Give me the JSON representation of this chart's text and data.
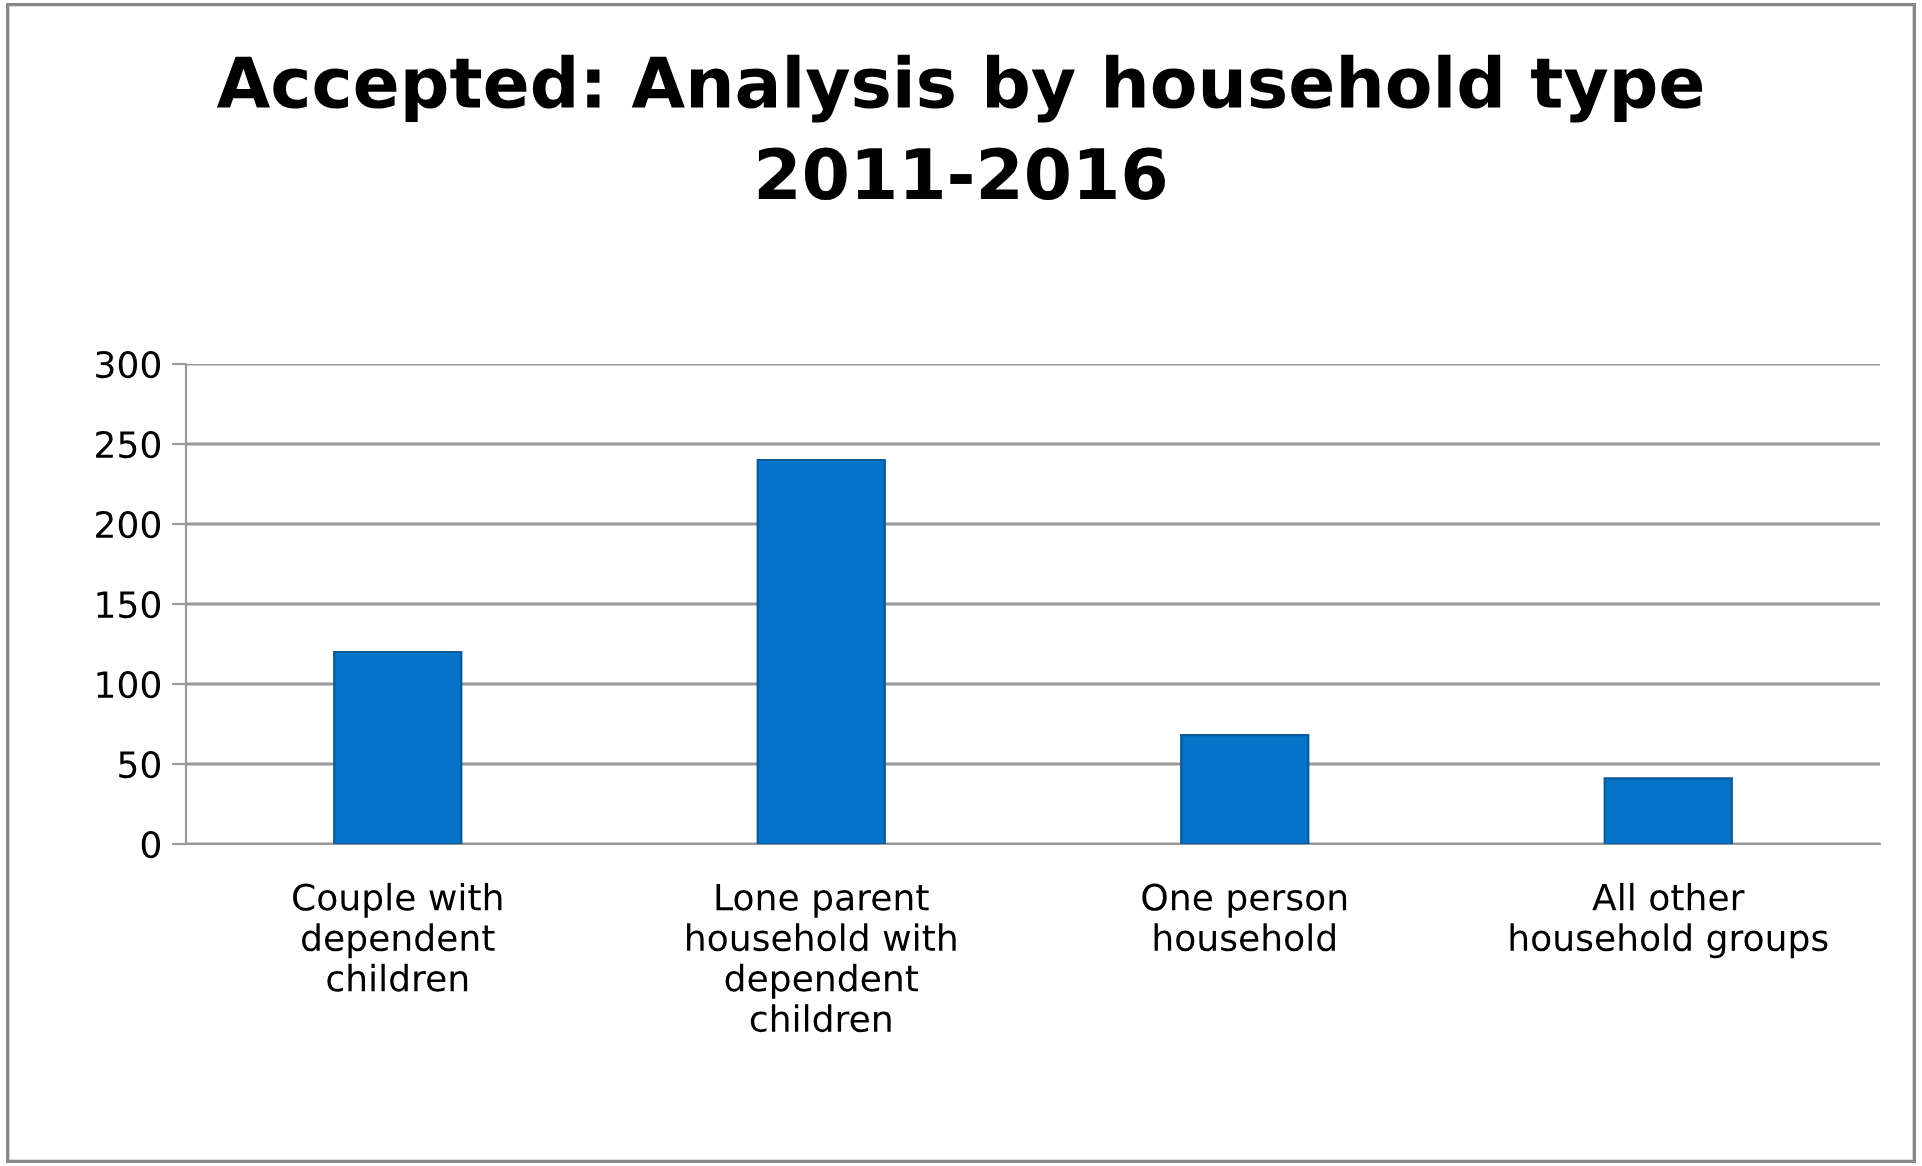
{
  "chart_data": {
    "type": "bar",
    "title": "Accepted: Analysis by household type\n2011-2016",
    "categories": [
      "Couple with\ndependent\nchildren",
      "Lone parent\nhousehold with\ndependent\nchildren",
      "One person\nhousehold",
      "All other\nhousehold groups"
    ],
    "values": [
      120,
      240,
      68,
      41
    ],
    "color": "#0473c8",
    "ylim": [
      0,
      300
    ],
    "yticks": [
      0,
      50,
      100,
      150,
      200,
      250,
      300
    ],
    "grid": "y",
    "legend": false
  }
}
